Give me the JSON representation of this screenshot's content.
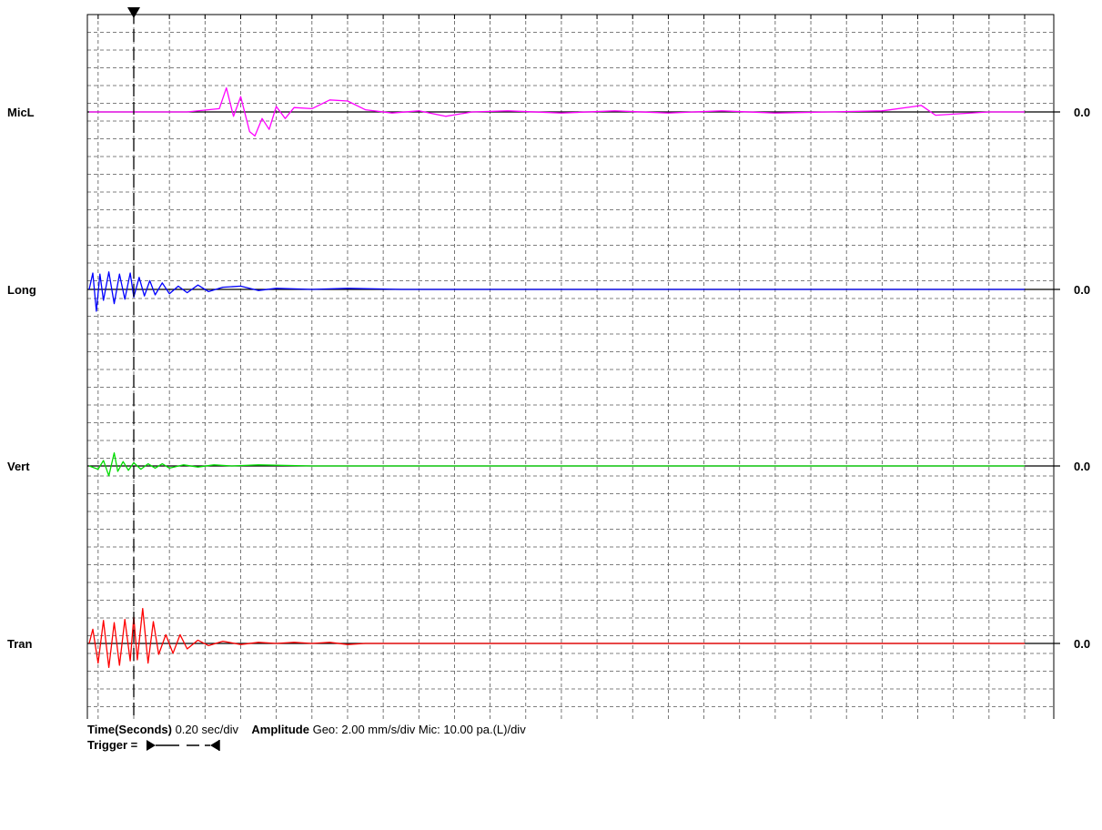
{
  "chart_data": {
    "type": "line",
    "x_range": [
      -0.25,
      5.0
    ],
    "x_ticks": [
      "0.0",
      "1.0",
      "2.0",
      "3.0",
      "4.0",
      "5.0"
    ],
    "x_tick_values": [
      0,
      1,
      2,
      3,
      4,
      5
    ],
    "trigger_time": 0.0,
    "grid": true,
    "series": [
      {
        "name": "MicL",
        "color": "#ff00ff",
        "value_label": "0.0",
        "x": [
          -0.25,
          0.3,
          0.48,
          0.52,
          0.56,
          0.6,
          0.65,
          0.68,
          0.72,
          0.76,
          0.8,
          0.85,
          0.9,
          1.0,
          1.1,
          1.2,
          1.3,
          1.45,
          1.6,
          1.75,
          1.9,
          2.1,
          2.4,
          2.7,
          3.0,
          3.3,
          3.6,
          3.9,
          4.2,
          4.38,
          4.42,
          4.5,
          4.6,
          4.8,
          5.0
        ],
        "y": [
          0.0,
          0.0,
          0.3,
          2.2,
          -0.4,
          1.4,
          -1.8,
          -2.2,
          -0.6,
          -1.6,
          0.5,
          -0.6,
          0.4,
          0.3,
          1.1,
          1.0,
          0.2,
          -0.1,
          0.1,
          -0.4,
          0.0,
          0.1,
          -0.1,
          0.1,
          -0.1,
          0.1,
          -0.1,
          0.0,
          0.1,
          0.5,
          0.6,
          -0.3,
          -0.2,
          0.0,
          0.0
        ]
      },
      {
        "name": "Long",
        "color": "#0000ff",
        "value_label": "0.0",
        "x": [
          -0.25,
          -0.23,
          -0.21,
          -0.19,
          -0.17,
          -0.14,
          -0.11,
          -0.08,
          -0.05,
          -0.02,
          0.0,
          0.03,
          0.06,
          0.09,
          0.12,
          0.16,
          0.2,
          0.25,
          0.3,
          0.36,
          0.42,
          0.5,
          0.6,
          0.7,
          0.8,
          1.0,
          1.2,
          1.5,
          2.0,
          3.0,
          4.0,
          5.0
        ],
        "y": [
          0.0,
          1.5,
          -2.0,
          1.4,
          -1.0,
          1.6,
          -1.3,
          1.4,
          -0.9,
          1.5,
          -0.7,
          1.1,
          -0.6,
          0.8,
          -0.5,
          0.6,
          -0.4,
          0.3,
          -0.3,
          0.4,
          -0.2,
          0.2,
          0.3,
          -0.1,
          0.1,
          0.0,
          0.1,
          0.0,
          0.0,
          0.0,
          0.0,
          0.0
        ]
      },
      {
        "name": "Vert",
        "color": "#00dd00",
        "value_label": "0.0",
        "x": [
          -0.25,
          -0.2,
          -0.17,
          -0.14,
          -0.11,
          -0.09,
          -0.06,
          -0.03,
          0.0,
          0.04,
          0.08,
          0.12,
          0.16,
          0.2,
          0.28,
          0.36,
          0.45,
          0.55,
          0.7,
          1.0,
          1.5,
          2.0,
          3.0,
          4.0,
          5.0
        ],
        "y": [
          0.0,
          -0.3,
          0.5,
          -0.9,
          1.2,
          -0.5,
          0.4,
          -0.4,
          0.3,
          -0.3,
          0.2,
          -0.2,
          0.2,
          -0.2,
          0.1,
          -0.1,
          0.1,
          0.0,
          0.1,
          0.0,
          0.0,
          0.0,
          0.0,
          0.0,
          0.0
        ]
      },
      {
        "name": "Tran",
        "color": "#ff0000",
        "value_label": "0.0",
        "x": [
          -0.25,
          -0.23,
          -0.2,
          -0.17,
          -0.14,
          -0.11,
          -0.08,
          -0.05,
          -0.02,
          0.0,
          0.02,
          0.05,
          0.08,
          0.11,
          0.14,
          0.18,
          0.22,
          0.26,
          0.3,
          0.36,
          0.42,
          0.5,
          0.6,
          0.7,
          0.8,
          0.9,
          1.0,
          1.1,
          1.2,
          1.3,
          1.5,
          2.0,
          3.0,
          4.0,
          5.0
        ],
        "y": [
          0.0,
          1.3,
          -1.8,
          2.1,
          -2.2,
          1.9,
          -2.0,
          2.2,
          -1.6,
          2.4,
          -1.5,
          3.2,
          -1.8,
          2.0,
          -1.0,
          0.8,
          -0.9,
          0.8,
          -0.5,
          0.3,
          -0.2,
          0.2,
          -0.1,
          0.1,
          0.0,
          0.1,
          0.0,
          0.1,
          -0.1,
          0.0,
          0.0,
          0.0,
          0.0,
          0.0,
          0.0
        ]
      }
    ]
  },
  "footer": {
    "time_label": "Time(Seconds)",
    "time_value": "0.20 sec/div",
    "amplitude_label": "Amplitude",
    "amplitude_value": "Geo: 2.00 mm/s/div Mic: 10.00 pa.(L)/div",
    "trigger_label": "Trigger ="
  },
  "colors": {
    "grid": "#555555",
    "frame": "#000000",
    "baseline": "#000000",
    "trigger_line": "#000000"
  }
}
